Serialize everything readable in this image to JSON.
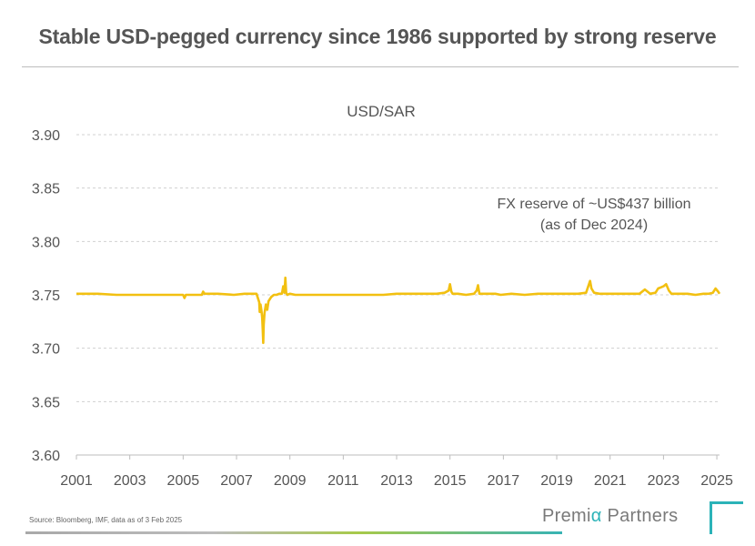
{
  "header": {
    "title": "Stable USD-pegged currency since 1986 supported by strong reserve"
  },
  "chart_data": {
    "type": "line",
    "title": "USD/SAR",
    "xlabel": "",
    "ylabel": "",
    "xlim": [
      2001.0,
      2025.1
    ],
    "ylim": [
      3.6,
      3.9
    ],
    "x_ticks": [
      "2001",
      "2003",
      "2005",
      "2007",
      "2009",
      "2011",
      "2013",
      "2015",
      "2017",
      "2019",
      "2021",
      "2023",
      "2025"
    ],
    "y_ticks": [
      "3.60",
      "3.65",
      "3.70",
      "3.75",
      "3.80",
      "3.85",
      "3.90"
    ],
    "grid": "horizontal dashed",
    "annotation": {
      "line1": "FX reserve of ~US$437 billion",
      "line2": "(as of Dec 2024)"
    },
    "series": [
      {
        "color": "#F2C011",
        "x": [
          2001.0,
          2001.8,
          2002.5,
          2003.3,
          2004.1,
          2004.9,
          2005.0,
          2005.05,
          2005.1,
          2005.5,
          2005.7,
          2005.75,
          2005.8,
          2006.3,
          2006.9,
          2007.3,
          2007.6,
          2007.75,
          2007.85,
          2007.87,
          2007.9,
          2007.93,
          2007.96,
          2007.98,
          2008.0,
          2008.02,
          2008.05,
          2008.1,
          2008.15,
          2008.2,
          2008.3,
          2008.4,
          2008.5,
          2008.6,
          2008.7,
          2008.75,
          2008.8,
          2008.83,
          2008.86,
          2008.9,
          2009.0,
          2009.2,
          2009.5,
          2009.8,
          2010.2,
          2010.7,
          2011.2,
          2011.6,
          2012.0,
          2012.5,
          2013.0,
          2013.5,
          2014.0,
          2014.5,
          2014.8,
          2014.95,
          2015.0,
          2015.05,
          2015.1,
          2015.3,
          2015.6,
          2015.9,
          2016.0,
          2016.05,
          2016.1,
          2016.3,
          2016.7,
          2016.9,
          2017.3,
          2017.8,
          2018.3,
          2018.8,
          2019.3,
          2019.8,
          2020.1,
          2020.25,
          2020.3,
          2020.4,
          2020.6,
          2020.9,
          2021.3,
          2021.8,
          2022.1,
          2022.3,
          2022.5,
          2022.7,
          2022.8,
          2022.9,
          2023.0,
          2023.1,
          2023.2,
          2023.3,
          2023.6,
          2023.9,
          2024.2,
          2024.5,
          2024.7,
          2024.85,
          2024.95,
          2025.05,
          2025.1
        ],
        "values": [
          3.751,
          3.751,
          3.75,
          3.75,
          3.75,
          3.75,
          3.75,
          3.747,
          3.75,
          3.75,
          3.75,
          3.753,
          3.751,
          3.751,
          3.75,
          3.751,
          3.751,
          3.751,
          3.743,
          3.734,
          3.741,
          3.736,
          3.729,
          3.718,
          3.705,
          3.722,
          3.733,
          3.741,
          3.736,
          3.744,
          3.748,
          3.75,
          3.75,
          3.751,
          3.751,
          3.758,
          3.752,
          3.766,
          3.752,
          3.75,
          3.751,
          3.75,
          3.75,
          3.75,
          3.75,
          3.75,
          3.75,
          3.75,
          3.75,
          3.75,
          3.751,
          3.751,
          3.751,
          3.751,
          3.752,
          3.754,
          3.76,
          3.753,
          3.751,
          3.751,
          3.75,
          3.751,
          3.754,
          3.759,
          3.751,
          3.751,
          3.751,
          3.75,
          3.751,
          3.75,
          3.751,
          3.751,
          3.751,
          3.751,
          3.752,
          3.763,
          3.756,
          3.752,
          3.751,
          3.751,
          3.751,
          3.751,
          3.751,
          3.755,
          3.751,
          3.752,
          3.756,
          3.757,
          3.758,
          3.76,
          3.754,
          3.751,
          3.751,
          3.751,
          3.75,
          3.751,
          3.751,
          3.752,
          3.756,
          3.753,
          3.751
        ]
      }
    ]
  },
  "footer": {
    "source": "Source: Bloomberg, IMF, data as of 3 Feb 2025",
    "logo_part1": "Premi",
    "logo_alpha": "α",
    "logo_part2": " Partners"
  }
}
